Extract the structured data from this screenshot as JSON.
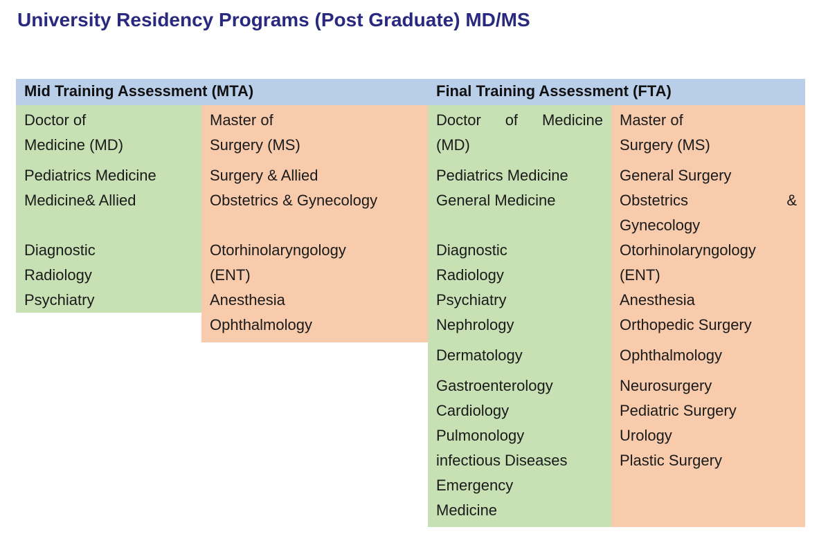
{
  "page_title": "University Residency Programs (Post Graduate) MD/MS",
  "colors": {
    "title_color": "#29297F",
    "text_color": "#1A1A1A",
    "header_bg": "#B9CEE9",
    "green_bg": "#C8E1B4",
    "orange_bg": "#F7CBAC"
  },
  "table": {
    "headers": [
      {
        "id": "mta",
        "label": "Mid Training Assessment (MTA)"
      },
      {
        "id": "fta",
        "label": "Final Training Assessment (FTA)"
      }
    ],
    "columns": [
      {
        "id": "mta-md",
        "section": "Mid Training Assessment (MTA)",
        "degree": "Doctor of Medicine (MD)",
        "paragraphs": [
          {
            "lines": [
              {
                "text": "Doctor of"
              },
              {
                "text": "Medicine (MD)"
              }
            ]
          },
          {
            "lines": [
              {
                "text": "Pediatrics Medicine"
              },
              {
                "text": "Medicine& Allied"
              },
              {
                "text": ""
              },
              {
                "text": "Diagnostic"
              },
              {
                "text": "Radiology"
              },
              {
                "text": "Psychiatry"
              }
            ]
          }
        ]
      },
      {
        "id": "mta-ms",
        "section": "Mid Training Assessment (MTA)",
        "degree": "Master of Surgery (MS)",
        "paragraphs": [
          {
            "lines": [
              {
                "text": "Master of"
              },
              {
                "text": "Surgery (MS)"
              }
            ]
          },
          {
            "lines": [
              {
                "text": "Surgery & Allied"
              },
              {
                "text": "Obstetrics & Gynecology"
              },
              {
                "text": ""
              },
              {
                "text": "Otorhinolaryngology"
              },
              {
                "text": "(ENT)"
              },
              {
                "text": "Anesthesia"
              },
              {
                "text": "Ophthalmology"
              }
            ]
          }
        ]
      },
      {
        "id": "fta-md",
        "section": "Final Training Assessment (FTA)",
        "degree": "Doctor of Medicine (MD)",
        "paragraphs": [
          {
            "lines": [
              {
                "text": "Doctor of Medicine",
                "justify": true
              },
              {
                "text": "(MD)"
              }
            ]
          },
          {
            "lines": [
              {
                "text": "Pediatrics Medicine"
              },
              {
                "text": "General Medicine"
              },
              {
                "text": ""
              },
              {
                "text": "Diagnostic"
              },
              {
                "text": "Radiology"
              },
              {
                "text": "Psychiatry"
              },
              {
                "text": "Nephrology"
              }
            ]
          },
          {
            "lines": [
              {
                "text": "Dermatology"
              }
            ]
          },
          {
            "lines": [
              {
                "text": "Gastroenterology"
              },
              {
                "text": "Cardiology"
              },
              {
                "text": "Pulmonology"
              },
              {
                "text": "infectious Diseases"
              },
              {
                "text": "Emergency"
              },
              {
                "text": "Medicine"
              }
            ]
          }
        ]
      },
      {
        "id": "fta-ms",
        "section": "Final Training Assessment (FTA)",
        "degree": "Master of Surgery (MS)",
        "paragraphs": [
          {
            "lines": [
              {
                "text": "Master of"
              },
              {
                "text": "Surgery (MS)"
              }
            ]
          },
          {
            "lines": [
              {
                "text": "General Surgery"
              },
              {
                "text": "Obstetrics &",
                "justify": true
              },
              {
                "text": "Gynecology"
              },
              {
                "text": "Otorhinolaryngology"
              },
              {
                "text": "(ENT)"
              },
              {
                "text": "Anesthesia"
              },
              {
                "text": "Orthopedic Surgery"
              }
            ]
          },
          {
            "lines": [
              {
                "text": "Ophthalmology"
              }
            ]
          },
          {
            "lines": [
              {
                "text": "Neurosurgery"
              },
              {
                "text": "Pediatric Surgery"
              },
              {
                "text": "Urology"
              },
              {
                "text": "Plastic Surgery"
              }
            ]
          }
        ]
      }
    ]
  }
}
